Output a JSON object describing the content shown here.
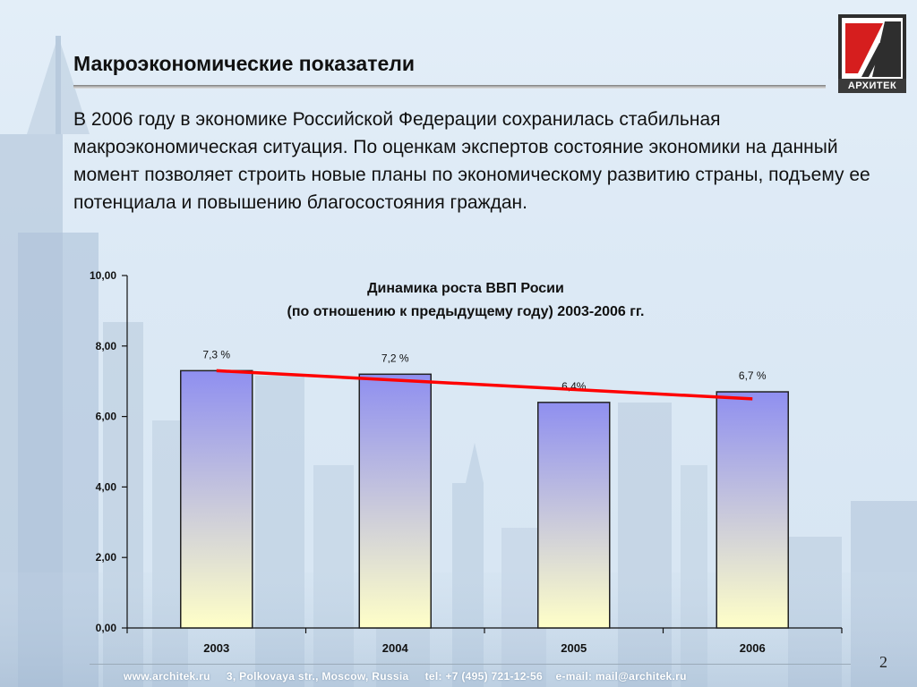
{
  "slide": {
    "title": "Макроэкономические показатели",
    "intro": "В 2006 году в экономике Российской Федерации сохранилась стабильная макроэкономическая ситуация. По оценкам экспертов состояние экономики на данный момент позволяет строить новые планы по экономическому развитию страны, подъему ее потенциала и повышению благосостояния граждан.",
    "logo_text": "АРХИТЕК",
    "footer": "www.architek.ru     3, Polkovaya str., Moscow, Russia     tel: +7 (495) 721-12-56    e-mail: mail@architek.ru",
    "page_number": "2"
  },
  "chart_data": {
    "type": "bar",
    "title_line1": "Динамика роста ВВП Росии",
    "title_line2": "(по отношению к предыдущему году) 2003-2006 гг.",
    "categories": [
      "2003",
      "2004",
      "2005",
      "2006"
    ],
    "values": [
      7.3,
      7.2,
      6.4,
      6.7
    ],
    "data_labels": [
      "7,3 %",
      "7,2 %",
      "6,4%",
      "6,7 %"
    ],
    "y_ticks": [
      "0,00",
      "2,00",
      "4,00",
      "6,00",
      "8,00",
      "10,00"
    ],
    "ylim": [
      0,
      10
    ],
    "trend_line": {
      "start": 7.3,
      "end": 6.5,
      "color": "#ff0000"
    },
    "bar_gradient": {
      "top": "#8f8ff0",
      "bottom": "#ffffc8"
    },
    "grid": false,
    "legend": "none"
  }
}
